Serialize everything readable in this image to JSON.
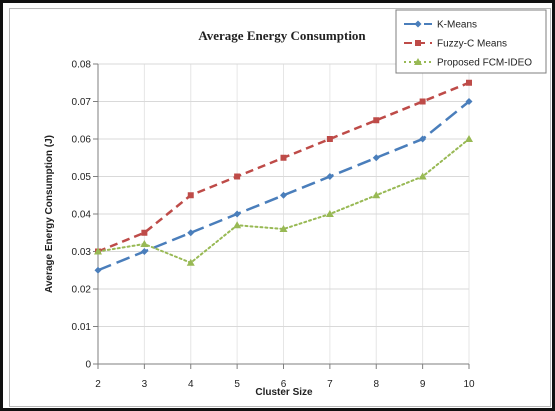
{
  "chart_data": {
    "type": "line",
    "title": "Average Energy Consumption",
    "xlabel": "Cluster Size",
    "ylabel": "Average Energy Consumption (J)",
    "x": [
      2,
      3,
      4,
      5,
      6,
      7,
      8,
      9,
      10
    ],
    "x_tick_labels": [
      "2",
      "3",
      "4",
      "5",
      "6",
      "7",
      "8",
      "9",
      "10"
    ],
    "ylim": [
      0,
      0.08
    ],
    "y_ticks": [
      0,
      0.01,
      0.02,
      0.03,
      0.04,
      0.05,
      0.06,
      0.07,
      0.08
    ],
    "y_tick_labels": [
      "0",
      "0.01",
      "0.02",
      "0.03",
      "0.04",
      "0.05",
      "0.06",
      "0.07",
      "0.08"
    ],
    "grid": true,
    "legend_position": "top-right",
    "series": [
      {
        "name": "K-Means",
        "values": [
          0.025,
          0.03,
          0.035,
          0.04,
          0.045,
          0.05,
          0.055,
          0.06,
          0.07
        ],
        "color": "#4a7ebb",
        "marker": "diamond",
        "line_style": "long-dash"
      },
      {
        "name": "Fuzzy-C Means",
        "values": [
          0.03,
          0.035,
          0.045,
          0.05,
          0.055,
          0.06,
          0.065,
          0.07,
          0.075
        ],
        "color": "#be4b48",
        "marker": "square",
        "line_style": "dash"
      },
      {
        "name": "Proposed FCM-IDEO",
        "values": [
          0.03,
          0.032,
          0.027,
          0.037,
          0.036,
          0.04,
          0.045,
          0.05,
          0.06
        ],
        "color": "#98b954",
        "marker": "triangle",
        "line_style": "dot"
      }
    ]
  }
}
